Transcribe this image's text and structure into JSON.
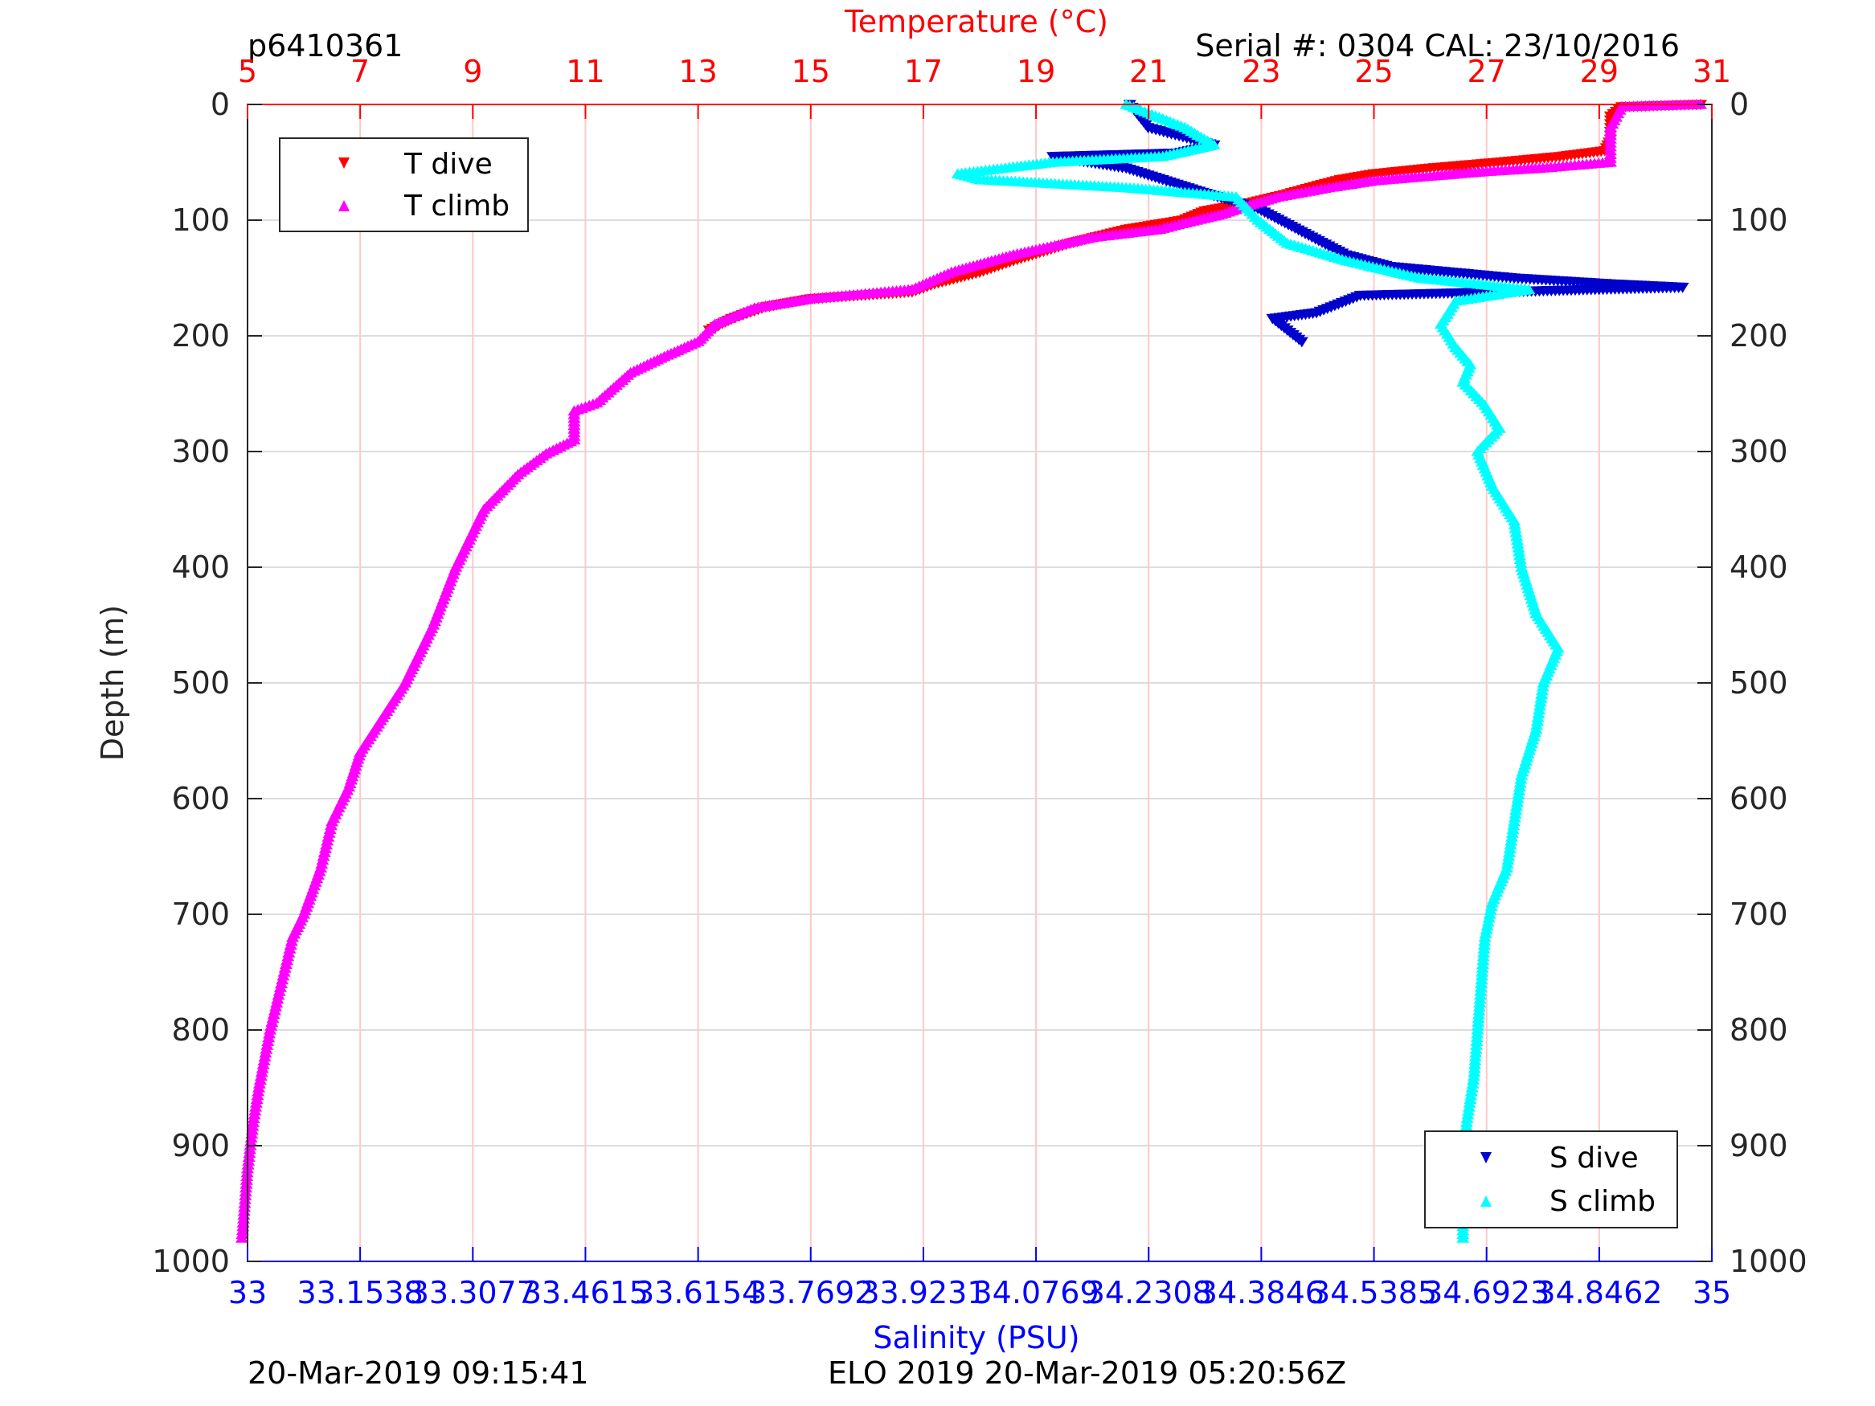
{
  "header": {
    "dive_id": "p6410361",
    "serial": "Serial #: 0304  CAL: 23/10/2016"
  },
  "footer": {
    "left": "20-Mar-2019 09:15:41",
    "center": "ELO 2019 20-Mar-2019 05:20:56Z"
  },
  "colors": {
    "temp_axis": "#ff0000",
    "sal_axis": "#0000ff",
    "t_dive": "#ff0000",
    "t_climb": "#ff00ff",
    "s_dive": "#0000cc",
    "s_climb": "#00ffff",
    "grid_red": "#ffc8c8",
    "grid_gray": "#dddddd"
  },
  "chart_data": {
    "type": "scatter",
    "y_label": "Depth (m)",
    "y_ticks": [
      "0",
      "100",
      "200",
      "300",
      "400",
      "500",
      "600",
      "700",
      "800",
      "900",
      "1000"
    ],
    "ylim": [
      0,
      1000
    ],
    "y_reversed": true,
    "top_axis": {
      "label": "Temperature (°C)",
      "range": [
        5,
        31
      ],
      "ticks": [
        "5",
        "7",
        "9",
        "11",
        "13",
        "15",
        "17",
        "19",
        "21",
        "23",
        "25",
        "27",
        "29",
        "31"
      ]
    },
    "bottom_axis": {
      "label": "Salinity (PSU)",
      "range": [
        33,
        35
      ],
      "ticks": [
        "33",
        "33.1538",
        "33.3077",
        "33.4615",
        "33.6154",
        "33.7692",
        "33.9231",
        "34.0769",
        "34.2308",
        "34.3846",
        "34.5385",
        "34.6923",
        "34.8462",
        "35"
      ]
    },
    "legend_temp": {
      "placement": "top-left",
      "entries": [
        "T dive",
        "T climb"
      ]
    },
    "legend_sal": {
      "placement": "bottom-right",
      "entries": [
        "S dive",
        "S climb"
      ]
    },
    "series": [
      {
        "name": "T dive",
        "axis": "temperature",
        "marker": "triangle-down",
        "points": [
          [
            30.8,
            0
          ],
          [
            29.4,
            2
          ],
          [
            29.2,
            10
          ],
          [
            29.2,
            30
          ],
          [
            29.1,
            40
          ],
          [
            28.3,
            45
          ],
          [
            27.2,
            50
          ],
          [
            26.0,
            55
          ],
          [
            25.0,
            60
          ],
          [
            24.4,
            65
          ],
          [
            24.0,
            70
          ],
          [
            23.4,
            78
          ],
          [
            22.8,
            85
          ],
          [
            22.0,
            92
          ],
          [
            21.6,
            100
          ],
          [
            20.6,
            108
          ],
          [
            19.6,
            120
          ],
          [
            18.6,
            135
          ],
          [
            18.0,
            145
          ],
          [
            17.2,
            155
          ],
          [
            16.8,
            162
          ],
          [
            15.0,
            168
          ],
          [
            14.2,
            175
          ],
          [
            13.6,
            185
          ],
          [
            13.2,
            195
          ]
        ]
      },
      {
        "name": "T climb",
        "axis": "temperature",
        "marker": "triangle-up",
        "points": [
          [
            30.8,
            0
          ],
          [
            29.4,
            2
          ],
          [
            29.2,
            20
          ],
          [
            29.2,
            50
          ],
          [
            28.0,
            55
          ],
          [
            27.0,
            58
          ],
          [
            26.0,
            62
          ],
          [
            25.0,
            66
          ],
          [
            24.2,
            72
          ],
          [
            23.3,
            80
          ],
          [
            22.8,
            87
          ],
          [
            22.3,
            95
          ],
          [
            21.6,
            103
          ],
          [
            21.2,
            108
          ],
          [
            20.0,
            115
          ],
          [
            18.6,
            130
          ],
          [
            17.5,
            145
          ],
          [
            16.8,
            160
          ],
          [
            15.0,
            168
          ],
          [
            14.0,
            176
          ],
          [
            13.3,
            190
          ],
          [
            13.0,
            205
          ],
          [
            12.4,
            218
          ],
          [
            11.8,
            232
          ],
          [
            11.5,
            245
          ],
          [
            11.2,
            258
          ],
          [
            10.8,
            265
          ],
          [
            10.8,
            290
          ],
          [
            10.3,
            302
          ],
          [
            9.8,
            320
          ],
          [
            9.2,
            350
          ],
          [
            8.7,
            400
          ],
          [
            8.3,
            450
          ],
          [
            8.0,
            480
          ],
          [
            7.8,
            500
          ],
          [
            7.4,
            530
          ],
          [
            7.0,
            560
          ],
          [
            6.8,
            590
          ],
          [
            6.5,
            620
          ],
          [
            6.3,
            660
          ],
          [
            6.0,
            700
          ],
          [
            5.8,
            720
          ],
          [
            5.6,
            760
          ],
          [
            5.4,
            800
          ],
          [
            5.2,
            850
          ],
          [
            5.1,
            880
          ],
          [
            5.0,
            920
          ],
          [
            4.9,
            980
          ]
        ]
      },
      {
        "name": "S dive",
        "axis": "salinity",
        "marker": "triangle-down",
        "points": [
          [
            34.205,
            0
          ],
          [
            34.23,
            20
          ],
          [
            34.32,
            35
          ],
          [
            34.27,
            42
          ],
          [
            34.1,
            45
          ],
          [
            34.2,
            55
          ],
          [
            34.25,
            65
          ],
          [
            34.3,
            75
          ],
          [
            34.38,
            90
          ],
          [
            34.44,
            110
          ],
          [
            34.5,
            130
          ],
          [
            34.56,
            140
          ],
          [
            34.73,
            150
          ],
          [
            34.86,
            155
          ],
          [
            34.96,
            158
          ],
          [
            34.52,
            165
          ],
          [
            34.48,
            175
          ],
          [
            34.46,
            180
          ],
          [
            34.4,
            185
          ],
          [
            34.42,
            195
          ],
          [
            34.44,
            205
          ]
        ]
      },
      {
        "name": "S climb",
        "axis": "salinity",
        "marker": "triangle-up",
        "points": [
          [
            34.2,
            0
          ],
          [
            34.28,
            20
          ],
          [
            34.32,
            35
          ],
          [
            34.25,
            45
          ],
          [
            34.1,
            50
          ],
          [
            33.97,
            60
          ],
          [
            34.0,
            65
          ],
          [
            34.2,
            72
          ],
          [
            34.35,
            80
          ],
          [
            34.38,
            100
          ],
          [
            34.42,
            120
          ],
          [
            34.5,
            135
          ],
          [
            34.6,
            150
          ],
          [
            34.75,
            160
          ],
          [
            34.65,
            170
          ],
          [
            34.63,
            190
          ],
          [
            34.65,
            210
          ],
          [
            34.67,
            225
          ],
          [
            34.66,
            240
          ],
          [
            34.69,
            260
          ],
          [
            34.71,
            280
          ],
          [
            34.68,
            300
          ],
          [
            34.7,
            330
          ],
          [
            34.73,
            360
          ],
          [
            34.74,
            400
          ],
          [
            34.76,
            440
          ],
          [
            34.79,
            470
          ],
          [
            34.77,
            500
          ],
          [
            34.76,
            540
          ],
          [
            34.74,
            580
          ],
          [
            34.73,
            620
          ],
          [
            34.72,
            660
          ],
          [
            34.7,
            690
          ],
          [
            34.69,
            720
          ],
          [
            34.685,
            760
          ],
          [
            34.68,
            800
          ],
          [
            34.675,
            840
          ],
          [
            34.665,
            880
          ],
          [
            34.66,
            920
          ],
          [
            34.66,
            980
          ]
        ]
      }
    ]
  }
}
